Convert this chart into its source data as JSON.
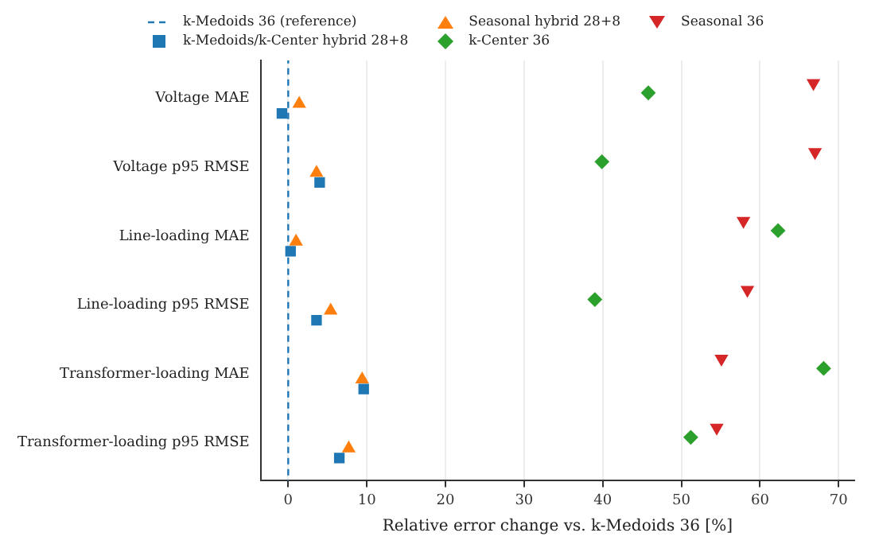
{
  "chart_data": {
    "type": "scatter",
    "orientation": "horizontal",
    "xlabel": "Relative error change vs. k-Medoids 36 [%]",
    "categories": [
      "Voltage MAE",
      "Voltage p95 RMSE",
      "Line-loading MAE",
      "Line-loading p95 RMSE",
      "Transformer-loading MAE",
      "Transformer-loading p95 RMSE"
    ],
    "series": [
      {
        "name": "k-Medoids/k-Center hybrid 28+8",
        "color": "#1f77b4",
        "marker": "square",
        "values": [
          -0.8,
          4.0,
          0.3,
          3.6,
          9.6,
          6.5
        ]
      },
      {
        "name": "Seasonal hybrid 28+8",
        "color": "#ff7f0e",
        "marker": "triangle",
        "values": [
          1.4,
          3.6,
          1.0,
          5.4,
          9.4,
          7.7
        ]
      },
      {
        "name": "k-Center 36",
        "color": "#2ca02c",
        "marker": "diamond",
        "values": [
          45.8,
          39.9,
          62.3,
          39.0,
          68.1,
          51.2
        ]
      },
      {
        "name": "Seasonal 36",
        "color": "#d62728",
        "marker": "triangle_down",
        "values": [
          66.8,
          67.0,
          57.9,
          58.4,
          55.1,
          54.5
        ]
      }
    ],
    "ref_lines": [
      {
        "axis": "x",
        "value": 0,
        "label": "k-Medoids 36 (reference)",
        "color": "#1f77b4",
        "line_style": "dashed"
      }
    ],
    "xlim": [
      -3.5,
      72
    ],
    "xticks": [
      0,
      10,
      20,
      30,
      40,
      50,
      60,
      70
    ],
    "grid": "x",
    "legend": "top"
  }
}
